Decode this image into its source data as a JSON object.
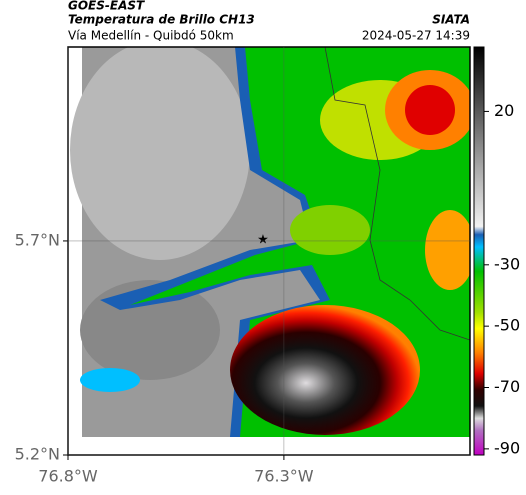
{
  "header": {
    "source": "GOES-EAST",
    "title": "Temperatura de Brillo CH13",
    "subtitle": "Vía Medellín - Quibdó 50km",
    "agency": "SIATA",
    "datetime": "2024-05-27 14:39"
  },
  "map": {
    "lat_lim": [
      5.2,
      6.153
    ],
    "lon_lim": [
      -76.8,
      -75.869
    ],
    "lat_ticks": [
      {
        "value": 5.7,
        "label": "5.7°N"
      },
      {
        "value": 5.2,
        "label": "5.2°N"
      }
    ],
    "lon_ticks": [
      {
        "value": -76.8,
        "label": "76.8°W"
      },
      {
        "value": -76.3,
        "label": "76.3°W"
      }
    ],
    "grid": true
  },
  "colorbar": {
    "lim": [
      41,
      -92
    ],
    "ticks": [
      20,
      -30,
      -50,
      -70,
      -90
    ]
  }
}
